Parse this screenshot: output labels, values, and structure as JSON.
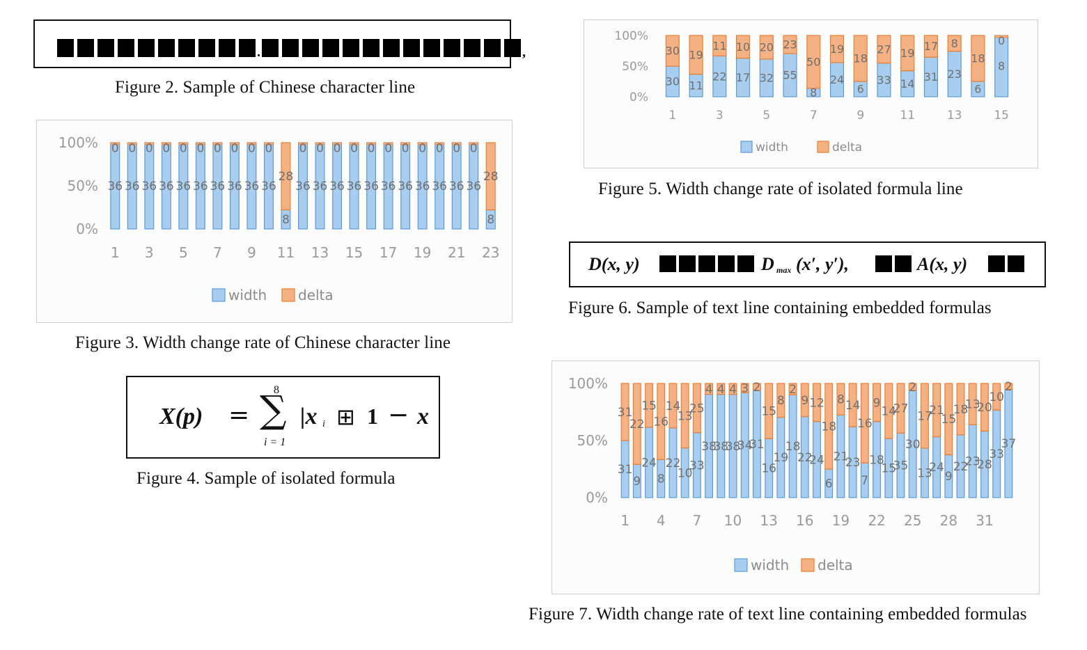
{
  "captions": {
    "fig2": "Figure 2.    Sample of Chinese character line",
    "fig3": "Figure 3.    Width change rate of Chinese character line",
    "fig4": "Figure 4.    Sample of isolated formula",
    "fig5": "Figure 5.    Width change rate of isolated formula line",
    "fig6": "Figure 6.    Sample of text line containing embedded formulas",
    "fig7": "Figure 7.    Width change rate of text line containing embedded formulas"
  },
  "fig2_sample": {
    "glyph_groups": [
      10,
      13
    ],
    "separators": [
      ".",
      ","
    ]
  },
  "fig4_formula": {
    "lhs": "X(p)",
    "equals": "=",
    "sum_symbol": "∑",
    "sum_upper": "8",
    "sum_lower": "i = 1",
    "body": "|x",
    "sub_i": "i",
    "plus_box": "⊞",
    "one": "1",
    "minus": "−",
    "tail": "x"
  },
  "fig6_sample": {
    "seg1": "D(x, y)",
    "seg2": "D",
    "seg2_sub": "max",
    "seg2_args": "(x′, y′),",
    "seg3": "A(x, y)"
  },
  "colors": {
    "width": "#5b9bd5",
    "width_light": "#a9cdee",
    "delta": "#ed7d31",
    "delta_light": "#f4b183"
  },
  "chart_data": [
    {
      "id": "fig3",
      "type": "bar",
      "stacked_percent": true,
      "legend": [
        "width",
        "delta"
      ],
      "legend_position": "bottom",
      "y_ticks": [
        "100%",
        "50%",
        "0%"
      ],
      "ylim": [
        0,
        100
      ],
      "x_tick_labels": [
        "1",
        "3",
        "5",
        "7",
        "9",
        "11",
        "13",
        "15",
        "17",
        "19",
        "21",
        "23"
      ],
      "x": [
        1,
        2,
        3,
        4,
        5,
        6,
        7,
        8,
        9,
        10,
        11,
        12,
        13,
        14,
        15,
        16,
        17,
        18,
        19,
        20,
        21,
        22,
        23
      ],
      "series": [
        {
          "name": "width",
          "values": [
            36,
            36,
            36,
            36,
            36,
            36,
            36,
            36,
            36,
            36,
            8,
            36,
            36,
            36,
            36,
            36,
            36,
            36,
            36,
            36,
            36,
            36,
            8
          ]
        },
        {
          "name": "delta",
          "values": [
            0,
            0,
            0,
            0,
            0,
            0,
            0,
            0,
            0,
            0,
            28,
            0,
            0,
            0,
            0,
            0,
            0,
            0,
            0,
            0,
            0,
            0,
            28
          ]
        }
      ]
    },
    {
      "id": "fig5",
      "type": "bar",
      "stacked_percent": true,
      "legend": [
        "width",
        "delta"
      ],
      "legend_position": "bottom",
      "y_ticks": [
        "100%",
        "50%",
        "0%"
      ],
      "ylim": [
        0,
        100
      ],
      "x_tick_labels": [
        "1",
        "3",
        "5",
        "7",
        "9",
        "11",
        "13",
        "15"
      ],
      "x": [
        1,
        2,
        3,
        4,
        5,
        6,
        7,
        8,
        9,
        10,
        11,
        12,
        13,
        14,
        15
      ],
      "series": [
        {
          "name": "width",
          "values": [
            30,
            11,
            22,
            17,
            32,
            55,
            8,
            24,
            6,
            33,
            14,
            31,
            23,
            6,
            8
          ]
        },
        {
          "name": "delta",
          "values": [
            30,
            19,
            11,
            10,
            20,
            23,
            50,
            19,
            18,
            27,
            19,
            17,
            8,
            18,
            0
          ]
        }
      ]
    },
    {
      "id": "fig7",
      "type": "bar",
      "stacked_percent": true,
      "legend": [
        "width",
        "delta"
      ],
      "legend_position": "bottom",
      "y_ticks": [
        "100%",
        "50%",
        "0%"
      ],
      "ylim": [
        0,
        100
      ],
      "x_tick_labels": [
        "1",
        "4",
        "7",
        "10",
        "13",
        "16",
        "19",
        "22",
        "25",
        "28",
        "31"
      ],
      "x": [
        1,
        2,
        3,
        4,
        5,
        6,
        7,
        8,
        9,
        10,
        11,
        12,
        13,
        14,
        15,
        16,
        17,
        18,
        19,
        20,
        21,
        22,
        23,
        24,
        25,
        26,
        27,
        28,
        29,
        30,
        31,
        32,
        33
      ],
      "series": [
        {
          "name": "width",
          "values": [
            31,
            9,
            24,
            8,
            22,
            10,
            33,
            38,
            38,
            38,
            34,
            31,
            16,
            19,
            18,
            22,
            24,
            6,
            21,
            23,
            7,
            18,
            15,
            35,
            30,
            13,
            24,
            9,
            22,
            23,
            28,
            33,
            37
          ]
        },
        {
          "name": "delta",
          "values": [
            31,
            22,
            15,
            16,
            14,
            13,
            25,
            4,
            4,
            4,
            3,
            2,
            15,
            8,
            2,
            9,
            12,
            18,
            8,
            14,
            16,
            9,
            14,
            27,
            2,
            17,
            21,
            15,
            18,
            13,
            20,
            10,
            2
          ]
        }
      ]
    }
  ]
}
